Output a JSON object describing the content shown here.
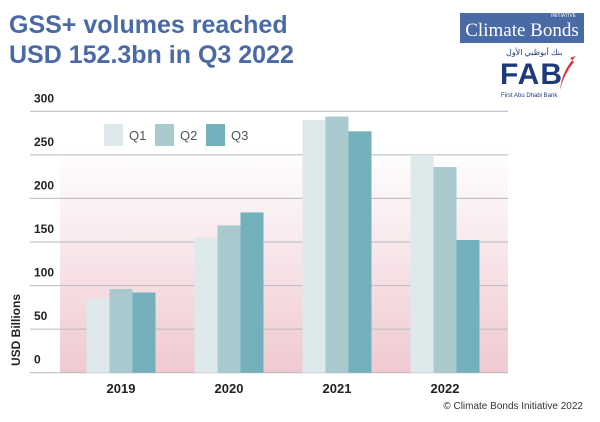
{
  "title_lines": [
    "GSS+ volumes reached",
    "USD 152.3bn in Q3 2022"
  ],
  "logos": {
    "climate_bonds": "Climate Bonds",
    "climate_bonds_small": "INITIATIVE",
    "fab": "FAB",
    "fab_arabic": "بنك أبوظبي الأول",
    "fab_sub": "First Abu Dhabi Bank"
  },
  "credit": "© Climate Bonds Initiative 2022",
  "chart_data": {
    "type": "bar",
    "title": "GSS+ volumes reached USD 152.3bn in Q3 2022",
    "xlabel": "",
    "ylabel": "USD Billions",
    "categories": [
      "2019",
      "2020",
      "2021",
      "2022"
    ],
    "series": [
      {
        "name": "Q1",
        "values": [
          85,
          155,
          290,
          250
        ],
        "color": "#dde9ea"
      },
      {
        "name": "Q2",
        "values": [
          96,
          169,
          294,
          236
        ],
        "color": "#a8cacf"
      },
      {
        "name": "Q3",
        "values": [
          92,
          184,
          277,
          152.3
        ],
        "color": "#74b0bb"
      }
    ],
    "ylim": [
      0,
      300
    ],
    "yticks": [
      0,
      50,
      100,
      150,
      200,
      250,
      300
    ],
    "grid": true,
    "legend": "top-left"
  }
}
